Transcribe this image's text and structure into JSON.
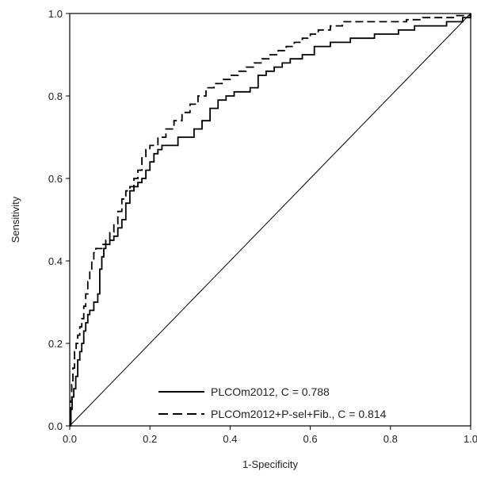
{
  "chart_data": {
    "type": "line",
    "title": "",
    "xlabel": "1-Specificity",
    "ylabel": "Sensitivity",
    "xlim": [
      0,
      1
    ],
    "ylim": [
      0,
      1
    ],
    "x_ticks": [
      "0.0",
      "0.2",
      "0.4",
      "0.6",
      "0.8",
      "1.0"
    ],
    "y_ticks": [
      "0.0",
      "0.2",
      "0.4",
      "0.6",
      "0.8",
      "1.0"
    ],
    "grid": false,
    "legend_position": "bottom-right",
    "reference_line": {
      "from": [
        0,
        0
      ],
      "to": [
        1,
        1
      ]
    },
    "series": [
      {
        "name": "PLCOm2012, C = 0.788",
        "line_style": "solid",
        "color": "#000000",
        "x": [
          0.0,
          0.003,
          0.006,
          0.01,
          0.015,
          0.02,
          0.025,
          0.03,
          0.035,
          0.04,
          0.045,
          0.05,
          0.06,
          0.07,
          0.075,
          0.08,
          0.085,
          0.09,
          0.095,
          0.1,
          0.11,
          0.12,
          0.13,
          0.14,
          0.15,
          0.16,
          0.17,
          0.18,
          0.19,
          0.2,
          0.21,
          0.22,
          0.23,
          0.25,
          0.27,
          0.29,
          0.31,
          0.33,
          0.35,
          0.37,
          0.39,
          0.41,
          0.43,
          0.45,
          0.47,
          0.49,
          0.51,
          0.53,
          0.55,
          0.58,
          0.61,
          0.65,
          0.7,
          0.76,
          0.82,
          0.86,
          0.9,
          0.94,
          0.98,
          1.0
        ],
        "y": [
          0.0,
          0.04,
          0.07,
          0.09,
          0.12,
          0.16,
          0.18,
          0.2,
          0.23,
          0.25,
          0.27,
          0.28,
          0.3,
          0.32,
          0.38,
          0.41,
          0.43,
          0.44,
          0.44,
          0.45,
          0.46,
          0.48,
          0.5,
          0.54,
          0.57,
          0.58,
          0.59,
          0.6,
          0.62,
          0.64,
          0.66,
          0.67,
          0.68,
          0.68,
          0.7,
          0.7,
          0.72,
          0.74,
          0.77,
          0.79,
          0.8,
          0.81,
          0.81,
          0.82,
          0.85,
          0.86,
          0.87,
          0.88,
          0.89,
          0.9,
          0.92,
          0.93,
          0.94,
          0.95,
          0.96,
          0.97,
          0.97,
          0.98,
          0.99,
          1.0
        ]
      },
      {
        "name": "PLCOm2012+P-sel+Fib., C = 0.814",
        "line_style": "dashed",
        "color": "#000000",
        "x": [
          0.0,
          0.002,
          0.005,
          0.008,
          0.012,
          0.016,
          0.02,
          0.025,
          0.03,
          0.035,
          0.04,
          0.045,
          0.05,
          0.055,
          0.06,
          0.065,
          0.07,
          0.08,
          0.09,
          0.1,
          0.11,
          0.12,
          0.13,
          0.14,
          0.15,
          0.16,
          0.17,
          0.18,
          0.19,
          0.2,
          0.22,
          0.24,
          0.26,
          0.28,
          0.3,
          0.32,
          0.34,
          0.36,
          0.38,
          0.4,
          0.42,
          0.44,
          0.46,
          0.48,
          0.5,
          0.52,
          0.54,
          0.56,
          0.58,
          0.6,
          0.62,
          0.65,
          0.68,
          0.72,
          0.76,
          0.8,
          0.84,
          0.88,
          0.92,
          0.96,
          1.0
        ],
        "y": [
          0.0,
          0.06,
          0.1,
          0.14,
          0.18,
          0.2,
          0.22,
          0.24,
          0.26,
          0.29,
          0.32,
          0.35,
          0.38,
          0.4,
          0.42,
          0.43,
          0.43,
          0.44,
          0.45,
          0.47,
          0.49,
          0.52,
          0.55,
          0.57,
          0.58,
          0.6,
          0.62,
          0.65,
          0.67,
          0.68,
          0.7,
          0.72,
          0.74,
          0.76,
          0.78,
          0.8,
          0.82,
          0.83,
          0.84,
          0.85,
          0.86,
          0.87,
          0.88,
          0.89,
          0.9,
          0.91,
          0.92,
          0.93,
          0.94,
          0.95,
          0.96,
          0.97,
          0.98,
          0.98,
          0.98,
          0.98,
          0.985,
          0.99,
          0.99,
          0.995,
          1.0
        ]
      }
    ]
  }
}
